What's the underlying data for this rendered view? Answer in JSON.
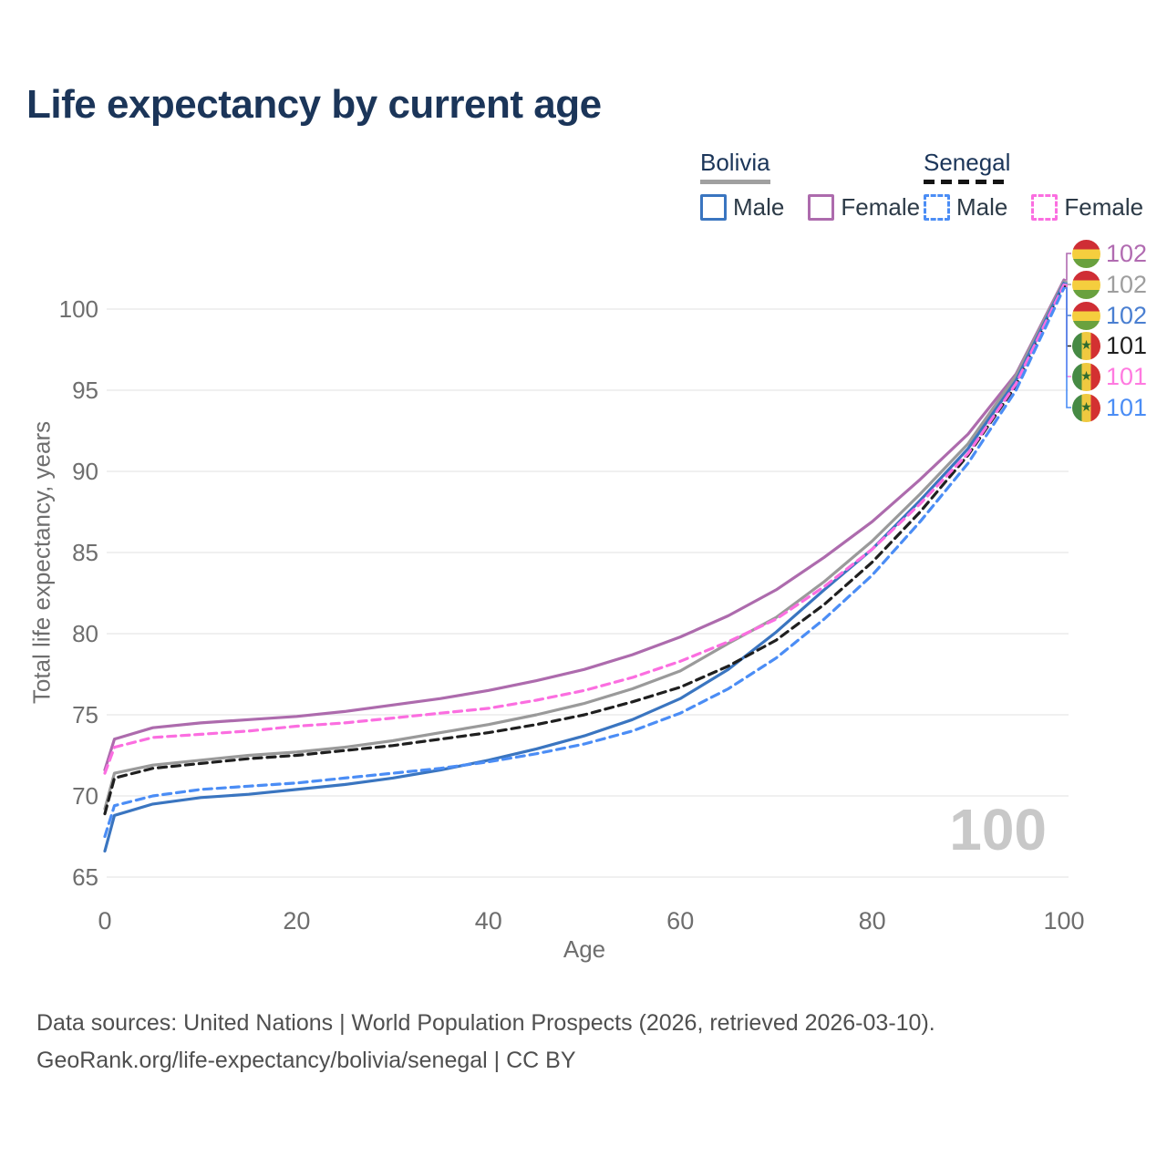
{
  "title": "Life expectancy by current age",
  "legend": {
    "bolivia": {
      "label": "Bolivia",
      "line_style": "solid",
      "male_label": "Male",
      "female_label": "Female",
      "male_color": "#3a75c0",
      "female_color": "#ad6bad"
    },
    "senegal": {
      "label": "Senegal",
      "line_style": "dashed",
      "male_label": "Male",
      "female_label": "Female",
      "male_color": "#4b8df5",
      "female_color": "#fb6ee0"
    }
  },
  "watermark": "100",
  "footer": {
    "line1": "Data sources: United Nations | World Population Prospects (2026, retrieved 2026-03-10).",
    "line2": "GeoRank.org/life-expectancy/bolivia/senegal | CC BY"
  },
  "chart_data": {
    "type": "line",
    "title": "Life expectancy by current age",
    "xlabel": "Age",
    "ylabel": "Total life expectancy, years",
    "xlim": [
      0,
      100
    ],
    "ylim": [
      65,
      103.5
    ],
    "x_ticks": [
      0,
      20,
      40,
      60,
      80,
      100
    ],
    "y_ticks": [
      65,
      70,
      75,
      80,
      85,
      90,
      95,
      100
    ],
    "grid": "horizontal",
    "legend_position": "top-right",
    "x": [
      0,
      1,
      5,
      10,
      15,
      20,
      25,
      30,
      35,
      40,
      45,
      50,
      55,
      60,
      65,
      70,
      75,
      80,
      85,
      90,
      95,
      100
    ],
    "series": [
      {
        "name": "Bolivia Female",
        "country": "Bolivia",
        "sex": "Female",
        "color": "#ad6bad",
        "line": "solid",
        "end_label": "102",
        "values": [
          71.6,
          73.5,
          74.2,
          74.5,
          74.7,
          74.9,
          75.2,
          75.6,
          76.0,
          76.5,
          77.1,
          77.8,
          78.7,
          79.8,
          81.1,
          82.7,
          84.7,
          86.9,
          89.5,
          92.3,
          96.0,
          101.8
        ]
      },
      {
        "name": "Bolivia",
        "country": "Bolivia",
        "sex": "Both",
        "color": "#9a9a9a",
        "line": "solid",
        "end_label": "102",
        "values": [
          69.2,
          71.4,
          71.9,
          72.2,
          72.5,
          72.7,
          73.0,
          73.4,
          73.9,
          74.4,
          75.0,
          75.7,
          76.6,
          77.7,
          79.4,
          81.0,
          83.2,
          85.7,
          88.6,
          91.7,
          95.9,
          101.7
        ]
      },
      {
        "name": "Bolivia Male",
        "country": "Bolivia",
        "sex": "Male",
        "color": "#3a75c0",
        "line": "solid",
        "end_label": "102",
        "values": [
          66.6,
          68.8,
          69.5,
          69.9,
          70.1,
          70.4,
          70.7,
          71.1,
          71.6,
          72.2,
          72.9,
          73.7,
          74.7,
          76.0,
          77.8,
          80.1,
          82.7,
          85.2,
          88.2,
          91.4,
          95.6,
          101.6
        ]
      },
      {
        "name": "Senegal",
        "country": "Senegal",
        "sex": "Both",
        "color": "#1f1f1f",
        "line": "dashed",
        "end_label": "101",
        "values": [
          68.9,
          71.1,
          71.7,
          72.0,
          72.3,
          72.5,
          72.8,
          73.1,
          73.5,
          73.9,
          74.4,
          75.0,
          75.8,
          76.7,
          78.0,
          79.6,
          81.8,
          84.4,
          87.5,
          91.0,
          95.3,
          101.4
        ]
      },
      {
        "name": "Senegal Female",
        "country": "Senegal",
        "sex": "Female",
        "color": "#fb6ee0",
        "line": "dashed",
        "end_label": "101",
        "values": [
          71.4,
          73.0,
          73.6,
          73.8,
          74.0,
          74.3,
          74.5,
          74.8,
          75.1,
          75.4,
          75.9,
          76.5,
          77.3,
          78.3,
          79.5,
          80.9,
          82.9,
          85.2,
          88.0,
          91.1,
          95.4,
          101.5
        ]
      },
      {
        "name": "Senegal Male",
        "country": "Senegal",
        "sex": "Male",
        "color": "#4b8df5",
        "line": "dashed",
        "end_label": "101",
        "values": [
          67.5,
          69.4,
          70.0,
          70.4,
          70.6,
          70.8,
          71.1,
          71.4,
          71.7,
          72.1,
          72.6,
          73.2,
          74.0,
          75.1,
          76.6,
          78.5,
          80.9,
          83.6,
          86.9,
          90.5,
          95.0,
          101.3
        ]
      }
    ],
    "end_labels": [
      {
        "value": "102",
        "color": "#b16bb1",
        "flag": "bolivia"
      },
      {
        "value": "102",
        "color": "#9e9e9e",
        "flag": "bolivia"
      },
      {
        "value": "102",
        "color": "#4a7fd1",
        "flag": "bolivia"
      },
      {
        "value": "101",
        "color": "#1f1f1f",
        "flag": "senegal"
      },
      {
        "value": "101",
        "color": "#ff7ae0",
        "flag": "senegal"
      },
      {
        "value": "101",
        "color": "#4b8df5",
        "flag": "senegal"
      }
    ]
  }
}
